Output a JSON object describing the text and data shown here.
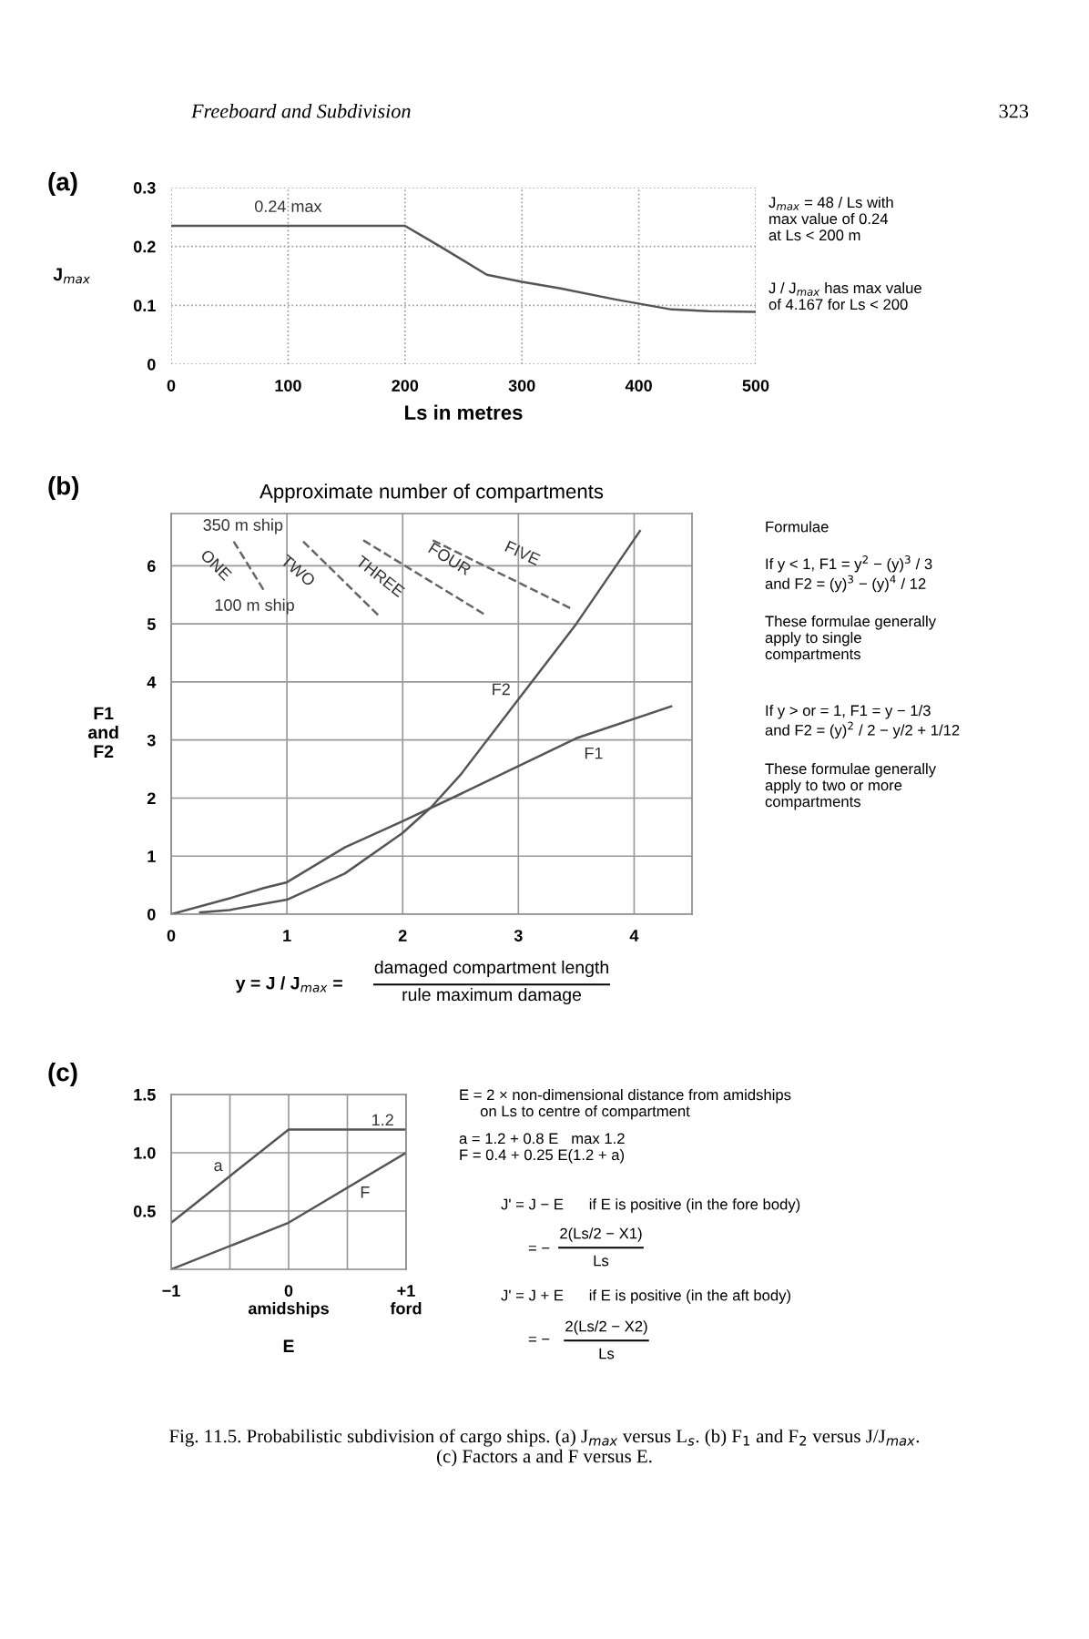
{
  "chart_data": [
    {
      "type": "line",
      "title": "(a)",
      "xlabel": "Ls in metres",
      "ylabel": "J$_{max}$",
      "x": [
        0,
        200,
        230,
        270,
        300,
        332,
        380,
        428,
        460,
        500
      ],
      "series": [
        {
          "color": "#555555",
          "values": [
            0.235,
            0.235,
            0.2,
            0.152,
            0.14,
            0.129,
            0.11,
            0.093,
            0.09,
            0.089
          ]
        }
      ],
      "xlim": [
        0,
        500
      ],
      "xticks": [
        0,
        100,
        200,
        300,
        400,
        500
      ],
      "ylim": [
        0,
        0.3
      ],
      "yticks": [
        0,
        0.1,
        0.2,
        0.3
      ],
      "grid": true,
      "marker": "none",
      "line_style": "solid",
      "annotations": [
        "Freeboard and Subdivision",
        "323",
        "J$_{max}$ = 48 / Ls with\nmax value of 0.24\nat Ls < 200 m",
        "J / J$_{max}$ has max value\nof 4.167 for Ls < 200",
        {
          "text": "0.24 max",
          "x": 100,
          "y": 0.24
        }
      ]
    },
    {
      "type": "line",
      "title": "(b)",
      "subtitle": "Approximate number of compartments",
      "xlabel": "y = J / J$_{max}$ =",
      "ylabel": "F1\nand\nF2",
      "series": [
        {
          "color": "#555555",
          "x": [
            0,
            0.5,
            0.8,
            1,
            1.5,
            2,
            2.5,
            3,
            3.5,
            4.32
          ],
          "values": [
            0,
            0.27,
            0.45,
            0.55,
            1.15,
            1.6,
            2.07,
            2.55,
            3.03,
            3.58
          ]
        },
        {
          "color": "#555555",
          "x": [
            0.25,
            0.5,
            1,
            1.5,
            2,
            2.25,
            2.5,
            3,
            3.5,
            4.05
          ],
          "values": [
            0.03,
            0.07,
            0.25,
            0.7,
            1.4,
            1.85,
            2.4,
            3.7,
            5.0,
            6.6
          ]
        },
        {
          "color": "#666666",
          "line_style": "dashed",
          "x": [
            0.54,
            0.8
          ],
          "values": [
            6.42,
            5.58
          ]
        },
        {
          "color": "#666666",
          "line_style": "dashed",
          "x": [
            1.14,
            1.81
          ],
          "values": [
            6.42,
            5.11
          ]
        },
        {
          "color": "#666666",
          "line_style": "dashed",
          "x": [
            1.66,
            2.71
          ],
          "values": [
            6.44,
            5.16
          ]
        },
        {
          "color": "#666666",
          "line_style": "dashed",
          "x": [
            2.26,
            3.46
          ],
          "values": [
            6.44,
            5.26
          ]
        }
      ],
      "xlim": [
        0,
        4.5
      ],
      "xticks": [
        0,
        1,
        2,
        3,
        4
      ],
      "ylim": [
        0,
        6.9
      ],
      "yticks": [
        0,
        1,
        2,
        3,
        4,
        5,
        6
      ],
      "grid": true,
      "marker": "none",
      "line_style": "solid",
      "annotations": [
        "Formulae",
        "If y < 1, F1 = y$^{2}$ − (y)$^{3}$ / 3\nand F2 = (y)$^{3}$ − (y)$^{4}$ / 12",
        "These formulae generally\napply to single\ncompartments",
        "If y > or = 1, F1 = y − 1/3\nand F2 = (y)$^{2}$ / 2 − y/2 + 1/12",
        "These formulae generally\napply to two or more\ncompartments",
        "damaged compartment length",
        "rule maximum damage",
        "350 m ship",
        "100 m ship",
        "ONE",
        "TWO",
        "THREE",
        "FOUR",
        "FIVE",
        "F2",
        "F1"
      ]
    },
    {
      "type": "line",
      "title": "(c)",
      "xlabel": "E",
      "x": [
        -1,
        0,
        1
      ],
      "series": [
        {
          "color": "#555555",
          "values": [
            0.4,
            1.2,
            1.2
          ]
        },
        {
          "color": "#555555",
          "values": [
            0.0,
            0.4,
            1.0
          ]
        }
      ],
      "xlim": [
        -1,
        1
      ],
      "xticks": [
        {
          "value": -1,
          "label": "−1"
        },
        {
          "value": -0.5,
          "label": null
        },
        {
          "value": 0,
          "label": "0\namidships"
        },
        {
          "value": 0.5,
          "label": null
        },
        {
          "value": 1,
          "label": "+1\nford"
        }
      ],
      "ylim": [
        0,
        1.5
      ],
      "yticks": [
        0.5,
        {
          "value": 1,
          "label": "1.0"
        },
        1.5
      ],
      "grid": true,
      "marker": "none",
      "line_style": "solid",
      "annotations": [
        "E = 2 × non-dimensional distance from amidships\n     on Ls to centre of compartment",
        "a = 1.2 + 0.8 E   max 1.2\nF = 0.4 + 0.25 E(1.2 + a)",
        "J' = J − E      if E is positive (in the fore body)",
        "= −",
        "2(Ls/2 − X1)",
        "Ls",
        "J' = J + E      if E is positive (in the aft body)",
        "= −",
        "2(Ls/2 − X2)",
        "Ls",
        "Fig. 11.5. Probabilistic subdivision of cargo ships. (a) J$_{max}$ versus L$_{s}$. (b) F$_{1}$ and F$_{2}$ versus J/J$_{max}$.\n(c) Factors a and F versus E.",
        "1.2",
        "a",
        "F"
      ]
    }
  ]
}
